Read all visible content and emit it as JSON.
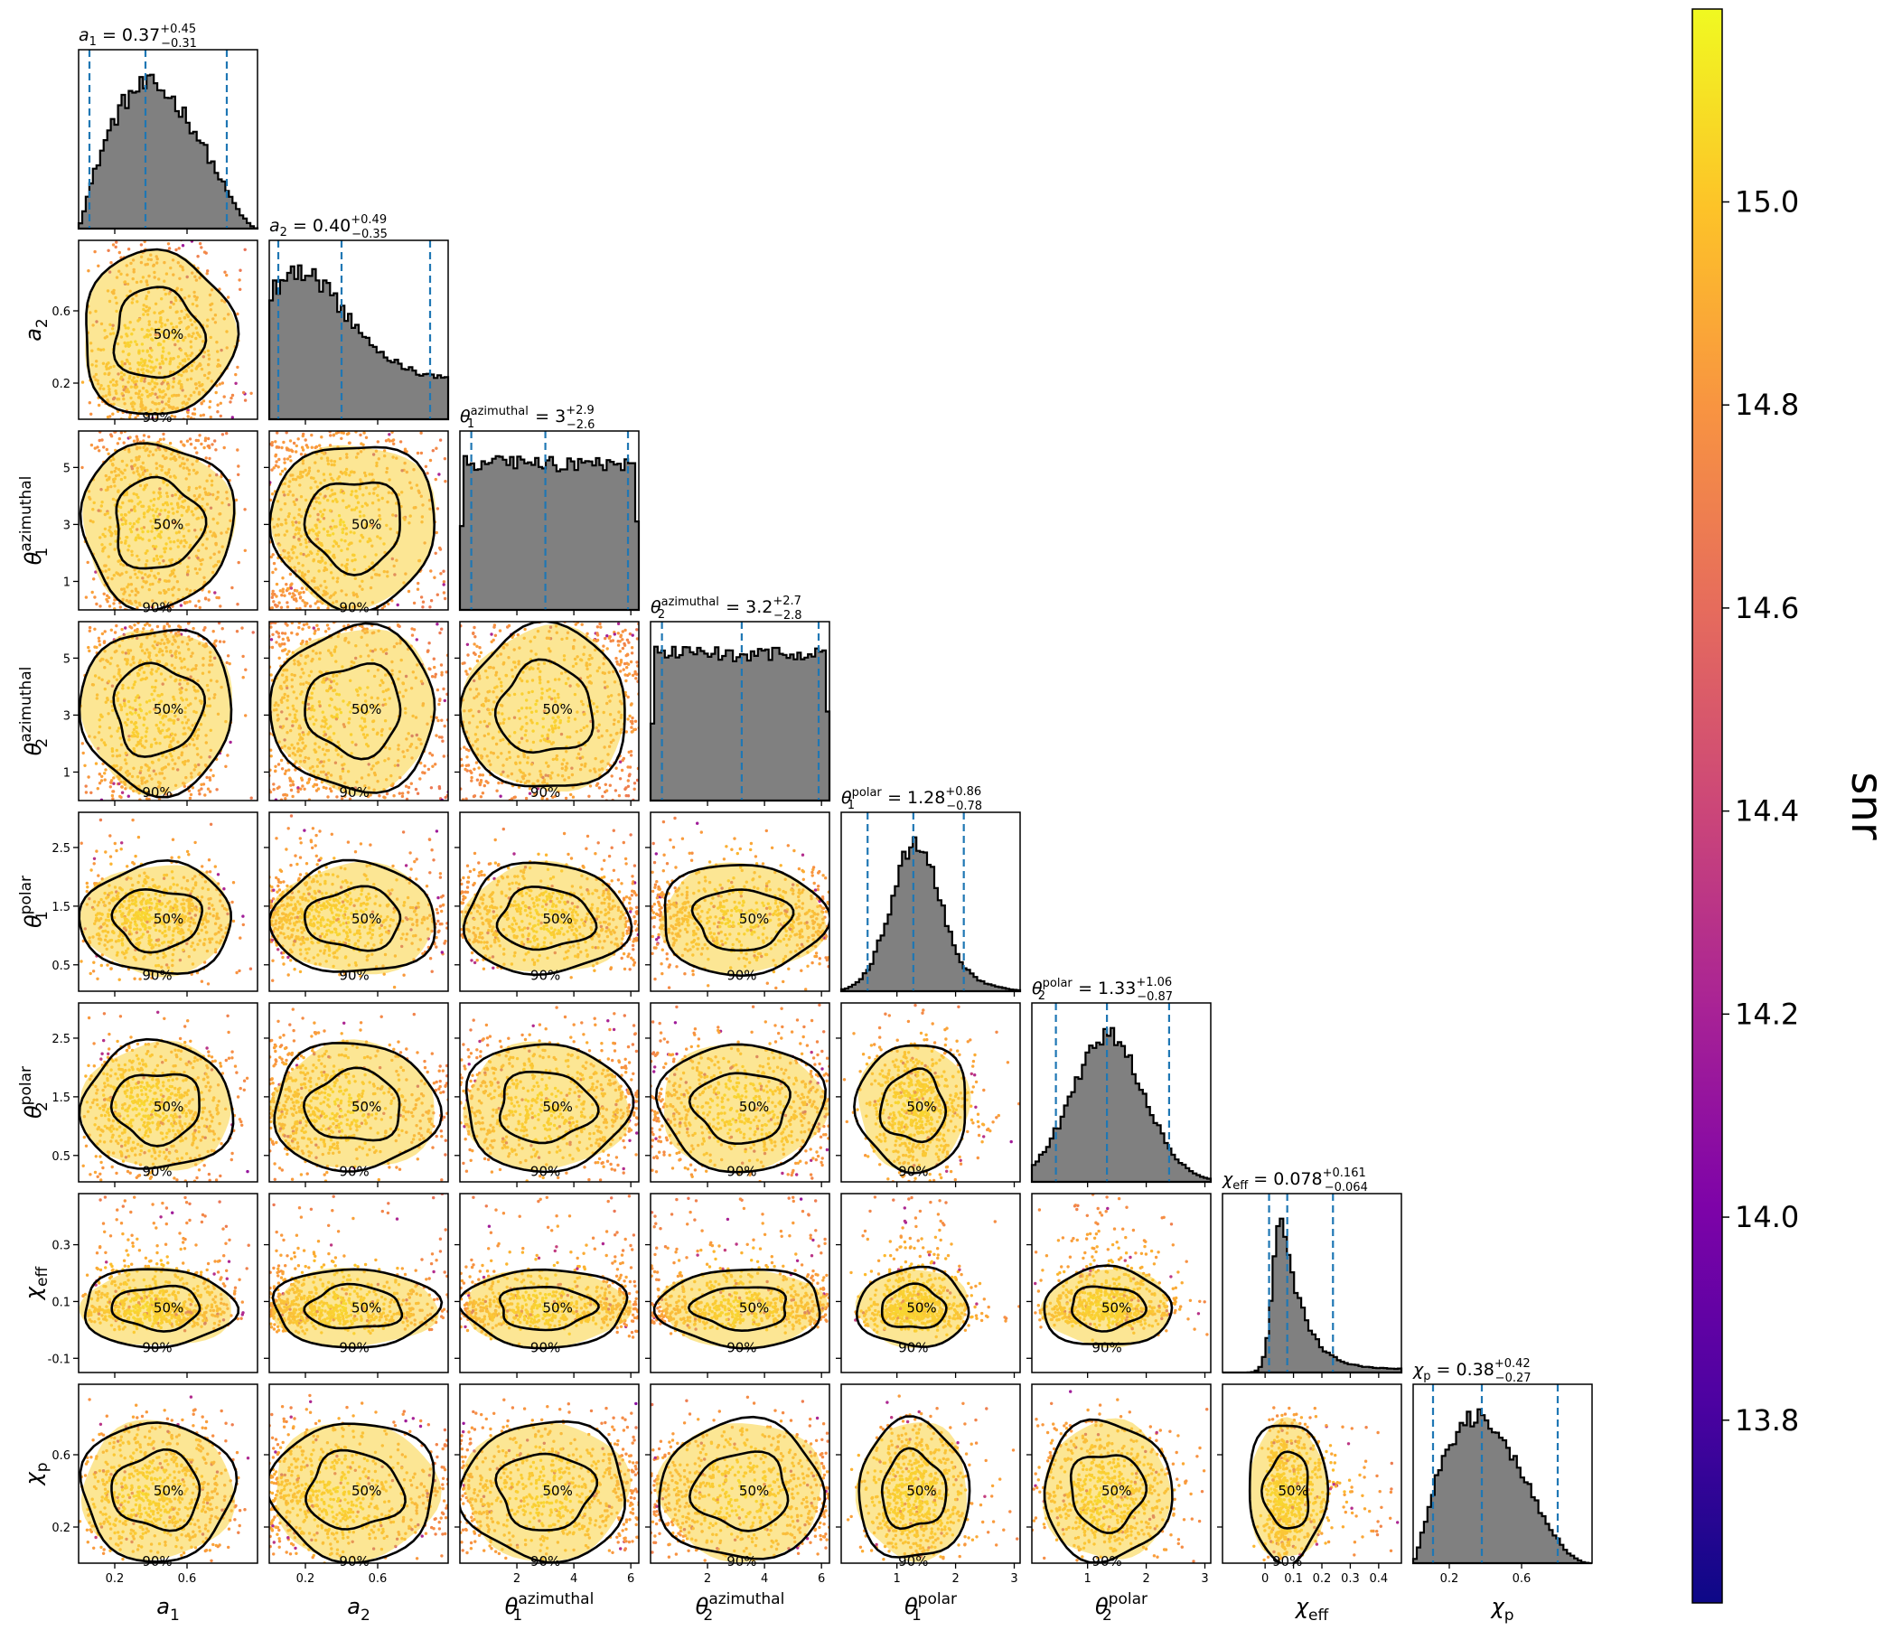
{
  "chart_data": {
    "type": "corner",
    "parameters": [
      {
        "key": "a1",
        "symbol": "a",
        "sub": "1",
        "range": [
          0.0,
          0.99
        ],
        "ticks": [
          0.2,
          0.6
        ],
        "title": {
          "value": "0.37",
          "plus": "+0.45",
          "minus": "−0.31"
        },
        "quantiles": [
          0.06,
          0.37,
          0.82
        ],
        "dist": "beta1"
      },
      {
        "key": "a2",
        "symbol": "a",
        "sub": "2",
        "range": [
          0.0,
          0.99
        ],
        "ticks": [
          0.2,
          0.6
        ],
        "title": {
          "value": "0.40",
          "plus": "+0.49",
          "minus": "−0.35"
        },
        "quantiles": [
          0.05,
          0.4,
          0.89
        ],
        "dist": "beta2"
      },
      {
        "key": "theta1_az",
        "symbol": "θ",
        "sub": "1",
        "sup": "azimuthal",
        "range": [
          0.0,
          6.28
        ],
        "ticks": [
          1,
          3,
          5
        ],
        "xticks": [
          2,
          4,
          6
        ],
        "title": {
          "value": "3",
          "plus": "+2.9",
          "minus": "−2.6"
        },
        "quantiles": [
          0.4,
          3.0,
          5.9
        ],
        "dist": "uniform"
      },
      {
        "key": "theta2_az",
        "symbol": "θ",
        "sub": "2",
        "sup": "azimuthal",
        "range": [
          0.0,
          6.28
        ],
        "ticks": [
          1,
          3,
          5
        ],
        "xticks": [
          2,
          4,
          6
        ],
        "title": {
          "value": "3.2",
          "plus": "+2.7",
          "minus": "−2.8"
        },
        "quantiles": [
          0.4,
          3.2,
          5.9
        ],
        "dist": "uniform"
      },
      {
        "key": "theta1_pol",
        "symbol": "θ",
        "sub": "1",
        "sup": "polar",
        "range": [
          0.05,
          3.1
        ],
        "ticks": [
          0.5,
          1.5,
          2.5
        ],
        "xticks": [
          1,
          2,
          3
        ],
        "title": {
          "value": "1.28",
          "plus": "+0.86",
          "minus": "−0.78"
        },
        "quantiles": [
          0.5,
          1.28,
          2.14
        ],
        "dist": "peak1"
      },
      {
        "key": "theta2_pol",
        "symbol": "θ",
        "sub": "2",
        "sup": "polar",
        "range": [
          0.05,
          3.1
        ],
        "ticks": [
          0.5,
          1.5,
          2.5
        ],
        "xticks": [
          1,
          2,
          3
        ],
        "title": {
          "value": "1.33",
          "plus": "+1.06",
          "minus": "−0.87"
        },
        "quantiles": [
          0.46,
          1.33,
          2.39
        ],
        "dist": "peak2"
      },
      {
        "key": "chi_eff",
        "symbol": "χ",
        "sub": "eff",
        "range": [
          -0.15,
          0.48
        ],
        "ticks": [
          -0.1,
          0.1,
          0.3
        ],
        "xticks": [
          0.0,
          0.1,
          0.2,
          0.3,
          0.4
        ],
        "title": {
          "value": "0.078",
          "plus": "+0.161",
          "minus": "−0.064"
        },
        "quantiles": [
          0.014,
          0.078,
          0.239
        ],
        "dist": "chieff"
      },
      {
        "key": "chi_p",
        "symbol": "χ",
        "sub": "p",
        "range": [
          0.0,
          0.99
        ],
        "ticks": [
          0.2,
          0.6
        ],
        "title": {
          "value": "0.38",
          "plus": "+0.42",
          "minus": "−0.27"
        },
        "quantiles": [
          0.11,
          0.38,
          0.8
        ],
        "dist": "beta3"
      }
    ],
    "contour_levels": [
      "50%",
      "90%"
    ],
    "colorbar": {
      "label": "snr",
      "colormap": "plasma",
      "range": [
        13.62,
        15.19
      ],
      "ticks": [
        "13.8",
        "14.0",
        "14.2",
        "14.4",
        "14.6",
        "14.8",
        "15.0"
      ],
      "tick_values": [
        13.8,
        14.0,
        14.2,
        14.4,
        14.6,
        14.8,
        15.0
      ]
    },
    "histogram_color": "#808080",
    "quantile_line_color": "#1f77b4",
    "contour_color": "#000000"
  }
}
